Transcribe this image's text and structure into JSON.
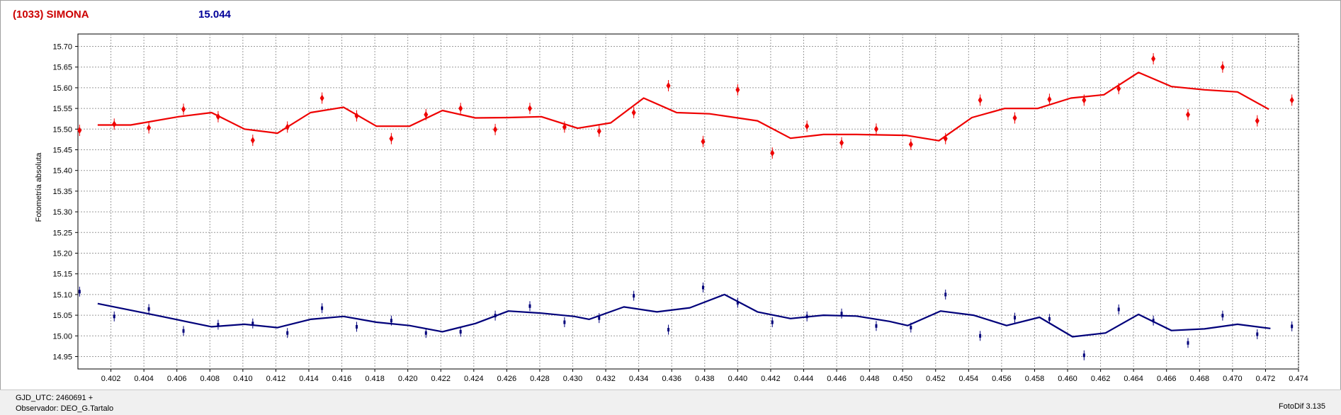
{
  "header": {
    "object_label": "(1033) SIMONA",
    "magnitude_label": "15.044"
  },
  "footer": {
    "gjd": "GJD_UTC: 2460691 +",
    "observer": "Observador: DEO_G.Tartalo",
    "software": "FotoDif 3.135"
  },
  "colors": {
    "series_blue": "#00007a",
    "series_red": "#ee0000",
    "grid": "#9a9a9a"
  },
  "chart_data": {
    "type": "line",
    "title": "(1033) SIMONA",
    "xlabel": "",
    "ylabel": "Fotometría absoluta",
    "xlim": [
      0.4,
      0.474
    ],
    "ylim": [
      15.73,
      14.92
    ],
    "y_inverted": true,
    "grid": true,
    "xticks": [
      "0.402",
      "0.404",
      "0.406",
      "0.408",
      "0.410",
      "0.412",
      "0.414",
      "0.416",
      "0.418",
      "0.420",
      "0.422",
      "0.424",
      "0.426",
      "0.428",
      "0.430",
      "0.432",
      "0.434",
      "0.436",
      "0.438",
      "0.440",
      "0.442",
      "0.444",
      "0.446",
      "0.448",
      "0.450",
      "0.452",
      "0.454",
      "0.456",
      "0.458",
      "0.460",
      "0.462",
      "0.464",
      "0.466",
      "0.468",
      "0.470",
      "0.472",
      "0.474"
    ],
    "yticks": [
      "14.95",
      "15.00",
      "15.05",
      "15.10",
      "15.15",
      "15.20",
      "15.25",
      "15.30",
      "15.35",
      "15.40",
      "15.45",
      "15.50",
      "15.55",
      "15.60",
      "15.65",
      "15.70"
    ],
    "series": [
      {
        "color": "#00007a",
        "points": [
          [
            0.4001,
            15.107
          ],
          [
            0.4022,
            15.047
          ],
          [
            0.4043,
            15.065
          ],
          [
            0.4064,
            15.012
          ],
          [
            0.4085,
            15.027
          ],
          [
            0.4106,
            15.03
          ],
          [
            0.4127,
            15.007
          ],
          [
            0.4148,
            15.067
          ],
          [
            0.4169,
            15.022
          ],
          [
            0.419,
            15.037
          ],
          [
            0.4211,
            15.007
          ],
          [
            0.4232,
            15.01
          ],
          [
            0.4253,
            15.049
          ],
          [
            0.4274,
            15.072
          ],
          [
            0.4295,
            15.033
          ],
          [
            0.4316,
            15.043
          ],
          [
            0.4337,
            15.097
          ],
          [
            0.4358,
            15.015
          ],
          [
            0.4379,
            15.117
          ],
          [
            0.44,
            15.08
          ],
          [
            0.4421,
            15.033
          ],
          [
            0.4442,
            15.047
          ],
          [
            0.4463,
            15.054
          ],
          [
            0.4484,
            15.024
          ],
          [
            0.4505,
            15.02
          ],
          [
            0.4526,
            15.1
          ],
          [
            0.4547,
            15.0
          ],
          [
            0.4568,
            15.044
          ],
          [
            0.4589,
            15.041
          ],
          [
            0.461,
            14.953
          ],
          [
            0.4631,
            15.064
          ],
          [
            0.4652,
            15.037
          ],
          [
            0.4673,
            14.983
          ],
          [
            0.4694,
            15.049
          ],
          [
            0.4715,
            15.004
          ],
          [
            0.4736,
            15.023
          ]
        ],
        "fit": [
          [
            0.4012,
            15.078
          ],
          [
            0.4047,
            15.05
          ],
          [
            0.4081,
            15.022
          ],
          [
            0.4101,
            15.028
          ],
          [
            0.4121,
            15.02
          ],
          [
            0.4141,
            15.04
          ],
          [
            0.4161,
            15.047
          ],
          [
            0.4181,
            15.033
          ],
          [
            0.4201,
            15.025
          ],
          [
            0.4221,
            15.01
          ],
          [
            0.4241,
            15.03
          ],
          [
            0.4261,
            15.06
          ],
          [
            0.4281,
            15.055
          ],
          [
            0.4301,
            15.047
          ],
          [
            0.431,
            15.04
          ],
          [
            0.4331,
            15.07
          ],
          [
            0.4351,
            15.058
          ],
          [
            0.4371,
            15.068
          ],
          [
            0.4392,
            15.1
          ],
          [
            0.4412,
            15.058
          ],
          [
            0.4432,
            15.042
          ],
          [
            0.4452,
            15.05
          ],
          [
            0.4472,
            15.048
          ],
          [
            0.4492,
            15.035
          ],
          [
            0.4503,
            15.025
          ],
          [
            0.4523,
            15.06
          ],
          [
            0.4543,
            15.05
          ],
          [
            0.4563,
            15.025
          ],
          [
            0.4583,
            15.045
          ],
          [
            0.4603,
            14.998
          ],
          [
            0.4623,
            15.007
          ],
          [
            0.4643,
            15.052
          ],
          [
            0.4663,
            15.013
          ],
          [
            0.4683,
            15.017
          ],
          [
            0.4703,
            15.028
          ],
          [
            0.4723,
            15.018
          ]
        ]
      },
      {
        "color": "#ee0000",
        "points": [
          [
            0.4001,
            15.497
          ],
          [
            0.4022,
            15.512
          ],
          [
            0.4043,
            15.503
          ],
          [
            0.4064,
            15.548
          ],
          [
            0.4085,
            15.53
          ],
          [
            0.4106,
            15.473
          ],
          [
            0.4127,
            15.505
          ],
          [
            0.4148,
            15.575
          ],
          [
            0.4169,
            15.532
          ],
          [
            0.419,
            15.477
          ],
          [
            0.4211,
            15.535
          ],
          [
            0.4232,
            15.55
          ],
          [
            0.4253,
            15.499
          ],
          [
            0.4274,
            15.55
          ],
          [
            0.4295,
            15.505
          ],
          [
            0.4316,
            15.495
          ],
          [
            0.4337,
            15.54
          ],
          [
            0.4358,
            15.605
          ],
          [
            0.4379,
            15.47
          ],
          [
            0.44,
            15.595
          ],
          [
            0.4421,
            15.442
          ],
          [
            0.4442,
            15.507
          ],
          [
            0.4463,
            15.467
          ],
          [
            0.4484,
            15.5
          ],
          [
            0.4505,
            15.463
          ],
          [
            0.4526,
            15.477
          ],
          [
            0.4547,
            15.57
          ],
          [
            0.4568,
            15.527
          ],
          [
            0.4589,
            15.572
          ],
          [
            0.461,
            15.57
          ],
          [
            0.4631,
            15.598
          ],
          [
            0.4652,
            15.67
          ],
          [
            0.4673,
            15.535
          ],
          [
            0.4694,
            15.65
          ],
          [
            0.4715,
            15.52
          ],
          [
            0.4736,
            15.57
          ]
        ],
        "fit": [
          [
            0.4012,
            15.51
          ],
          [
            0.4032,
            15.51
          ],
          [
            0.4061,
            15.53
          ],
          [
            0.4081,
            15.54
          ],
          [
            0.4101,
            15.5
          ],
          [
            0.4121,
            15.49
          ],
          [
            0.4141,
            15.54
          ],
          [
            0.4161,
            15.553
          ],
          [
            0.4181,
            15.507
          ],
          [
            0.4201,
            15.507
          ],
          [
            0.4221,
            15.545
          ],
          [
            0.4241,
            15.527
          ],
          [
            0.4261,
            15.528
          ],
          [
            0.4281,
            15.53
          ],
          [
            0.4303,
            15.502
          ],
          [
            0.4323,
            15.515
          ],
          [
            0.4343,
            15.575
          ],
          [
            0.4363,
            15.54
          ],
          [
            0.4383,
            15.537
          ],
          [
            0.4412,
            15.52
          ],
          [
            0.4432,
            15.478
          ],
          [
            0.4452,
            15.487
          ],
          [
            0.4472,
            15.487
          ],
          [
            0.4502,
            15.485
          ],
          [
            0.4522,
            15.472
          ],
          [
            0.4542,
            15.528
          ],
          [
            0.4562,
            15.55
          ],
          [
            0.4582,
            15.55
          ],
          [
            0.4602,
            15.575
          ],
          [
            0.4622,
            15.583
          ],
          [
            0.4643,
            15.637
          ],
          [
            0.4663,
            15.603
          ],
          [
            0.4683,
            15.595
          ],
          [
            0.4703,
            15.59
          ],
          [
            0.4722,
            15.548
          ]
        ]
      }
    ]
  }
}
